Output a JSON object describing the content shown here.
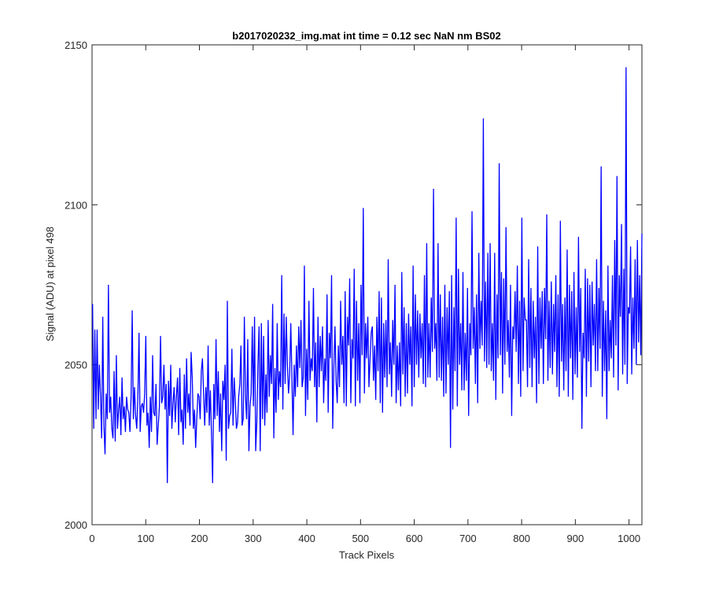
{
  "chart_data": {
    "type": "line",
    "title": "b2017020232_img.mat int time = 0.12 sec  NaN nm BS02",
    "xlabel": "Track Pixels",
    "ylabel": "Signal (ADU) at pixel 498",
    "xlim": [
      0,
      1024
    ],
    "ylim": [
      2000,
      2150
    ],
    "xticks": [
      0,
      100,
      200,
      300,
      400,
      500,
      600,
      700,
      800,
      900,
      1000
    ],
    "yticks": [
      2000,
      2050,
      2100,
      2150
    ],
    "xtick_labels": [
      "0",
      "100",
      "200",
      "300",
      "400",
      "500",
      "600",
      "700",
      "800",
      "900",
      "1000"
    ],
    "ytick_labels": [
      "2000",
      "2050",
      "2100",
      "2150"
    ],
    "grid": false,
    "series": [
      {
        "color": "#0000ff",
        "x_start": 1,
        "x_step": 1,
        "values_description_note": "",
        "values": [
          2069,
          2030,
          2061,
          2033,
          2061,
          2036,
          2050,
          2040,
          2027,
          2065,
          2031,
          2022,
          2041,
          2033,
          2075,
          2035,
          2040,
          2030,
          2027,
          2048,
          2026,
          2053,
          2030,
          2036,
          2040,
          2028,
          2046,
          2033,
          2037,
          2029,
          2040,
          2036,
          2035,
          2029,
          2040,
          2067,
          2033,
          2043,
          2034,
          2030,
          2040,
          2060,
          2029,
          2037,
          2038,
          2035,
          2041,
          2059,
          2031,
          2035,
          2024,
          2040,
          2029,
          2053,
          2035,
          2034,
          2044,
          2025,
          2031,
          2037,
          2059,
          2038,
          2040,
          2050,
          2036,
          2044,
          2013,
          2045,
          2034,
          2050,
          2030,
          2038,
          2043,
          2032,
          2040,
          2046,
          2028,
          2049,
          2032,
          2036,
          2025,
          2047,
          2030,
          2052,
          2035,
          2041,
          2031,
          2054,
          2046,
          2030,
          2036,
          2024,
          2033,
          2041,
          2040,
          2033,
          2048,
          2052,
          2041,
          2031,
          2043,
          2035,
          2056,
          2031,
          2042,
          2028,
          2013,
          2044,
          2033,
          2058,
          2034,
          2048,
          2029,
          2041,
          2023,
          2045,
          2039,
          2050,
          2020,
          2070,
          2030,
          2034,
          2035,
          2055,
          2031,
          2046,
          2039,
          2030,
          2032,
          2040,
          2044,
          2056,
          2031,
          2033,
          2065,
          2040,
          2033,
          2058,
          2023,
          2037,
          2041,
          2062,
          2037,
          2065,
          2023,
          2032,
          2050,
          2062,
          2023,
          2063,
          2033,
          2059,
          2031,
          2047,
          2035,
          2064,
          2040,
          2053,
          2044,
          2069,
          2027,
          2049,
          2035,
          2063,
          2039,
          2048,
          2043,
          2078,
          2036,
          2066,
          2044,
          2065,
          2050,
          2041,
          2047,
          2063,
          2046,
          2028,
          2050,
          2040,
          2056,
          2043,
          2062,
          2049,
          2064,
          2043,
          2046,
          2081,
          2034,
          2055,
          2039,
          2070,
          2045,
          2052,
          2048,
          2074,
          2043,
          2057,
          2032,
          2065,
          2043,
          2059,
          2048,
          2062,
          2038,
          2052,
          2045,
          2072,
          2035,
          2060,
          2052,
          2078,
          2030,
          2049,
          2062,
          2045,
          2038,
          2056,
          2043,
          2070,
          2050,
          2059,
          2038,
          2073,
          2037,
          2065,
          2056,
          2077,
          2038,
          2058,
          2052,
          2080,
          2037,
          2070,
          2045,
          2063,
          2038,
          2075,
          2053,
          2099,
          2041,
          2063,
          2052,
          2065,
          2043,
          2052,
          2060,
          2062,
          2045,
          2056,
          2039,
          2065,
          2048,
          2073,
          2038,
          2071,
          2035,
          2063,
          2046,
          2064,
          2043,
          2083,
          2047,
          2057,
          2040,
          2064,
          2050,
          2075,
          2038,
          2056,
          2042,
          2057,
          2037,
          2079,
          2047,
          2068,
          2040,
          2063,
          2041,
          2066,
          2050,
          2062,
          2037,
          2081,
          2043,
          2072,
          2050,
          2067,
          2046,
          2066,
          2052,
          2063,
          2044,
          2078,
          2043,
          2088,
          2046,
          2063,
          2046,
          2071,
          2054,
          2105,
          2055,
          2063,
          2045,
          2088,
          2046,
          2072,
          2045,
          2065,
          2040,
          2075,
          2041,
          2068,
          2050,
          2073,
          2024,
          2078,
          2036,
          2068,
          2048,
          2096,
          2037,
          2080,
          2050,
          2063,
          2042,
          2079,
          2042,
          2060,
          2045,
          2074,
          2034,
          2063,
          2053,
          2098,
          2055,
          2068,
          2044,
          2072,
          2038,
          2085,
          2055,
          2070,
          2056,
          2127,
          2051,
          2076,
          2049,
          2085,
          2050,
          2088,
          2048,
          2063,
          2045,
          2085,
          2039,
          2072,
          2052,
          2113,
          2053,
          2079,
          2041,
          2077,
          2050,
          2093,
          2054,
          2064,
          2046,
          2075,
          2034,
          2062,
          2058,
          2073,
          2054,
          2081,
          2044,
          2070,
          2040,
          2096,
          2048,
          2071,
          2064,
          2064,
          2043,
          2083,
          2049,
          2074,
          2043,
          2070,
          2052,
          2065,
          2038,
          2087,
          2044,
          2071,
          2055,
          2073,
          2044,
          2074,
          2058,
          2097,
          2045,
          2070,
          2049,
          2076,
          2047,
          2069,
          2054,
          2078,
          2043,
          2072,
          2040,
          2095,
          2051,
          2069,
          2042,
          2071,
          2048,
          2086,
          2040,
          2075,
          2052,
          2073,
          2039,
          2079,
          2047,
          2068,
          2046,
          2090,
          2054,
          2074,
          2030,
          2060,
          2052,
          2080,
          2040,
          2077,
          2051,
          2075,
          2043,
          2076,
          2056,
          2069,
          2048,
          2083,
          2048,
          2074,
          2055,
          2112,
          2040,
          2070,
          2048,
          2067,
          2033,
          2081,
          2048,
          2064,
          2052,
          2078,
          2046,
          2089,
          2056,
          2109,
          2042,
          2078,
          2065,
          2094,
          2047,
          2080,
          2050,
          2143,
          2044,
          2068,
          2066,
          2087,
          2047,
          2071,
          2055,
          2083,
          2050,
          2089,
          2057,
          2078,
          2053,
          2091
        ]
      }
    ]
  }
}
